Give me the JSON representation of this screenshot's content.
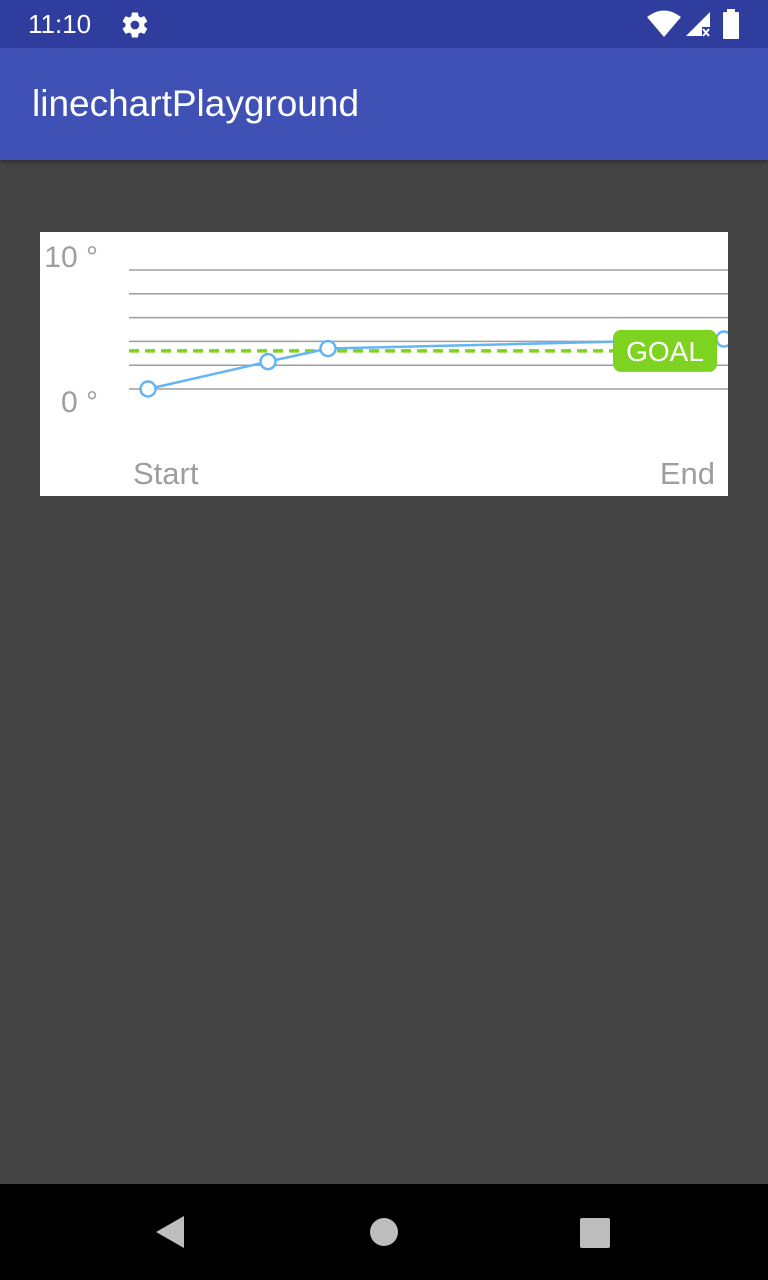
{
  "status_bar": {
    "time": "11:10",
    "icons": [
      "settings-icon",
      "wifi-icon",
      "cell-signal-icon",
      "battery-icon"
    ],
    "background": "#2f3e9e"
  },
  "app_bar": {
    "title": "linechartPlayground",
    "background": "#3f51b5"
  },
  "content": {
    "background": "#444444"
  },
  "chart_data": {
    "type": "line",
    "title": "",
    "xlabel": "",
    "ylabel": "",
    "y_tick_labels": [
      "10 °",
      "0 °"
    ],
    "x_labels": [
      "Start",
      "End"
    ],
    "ylim": [
      0,
      10
    ],
    "grid": true,
    "series": [
      {
        "color": "#64b5f6",
        "x": [
          0,
          1,
          1.5,
          4.8
        ],
        "y": [
          0,
          2.3,
          3.4,
          4.2
        ]
      }
    ],
    "goal_line": {
      "value": 3.2,
      "label": "GOAL",
      "color": "#7ed321"
    }
  },
  "nav_bar": {
    "icons": [
      "back-icon",
      "home-icon",
      "recents-icon"
    ],
    "background": "#000000"
  }
}
